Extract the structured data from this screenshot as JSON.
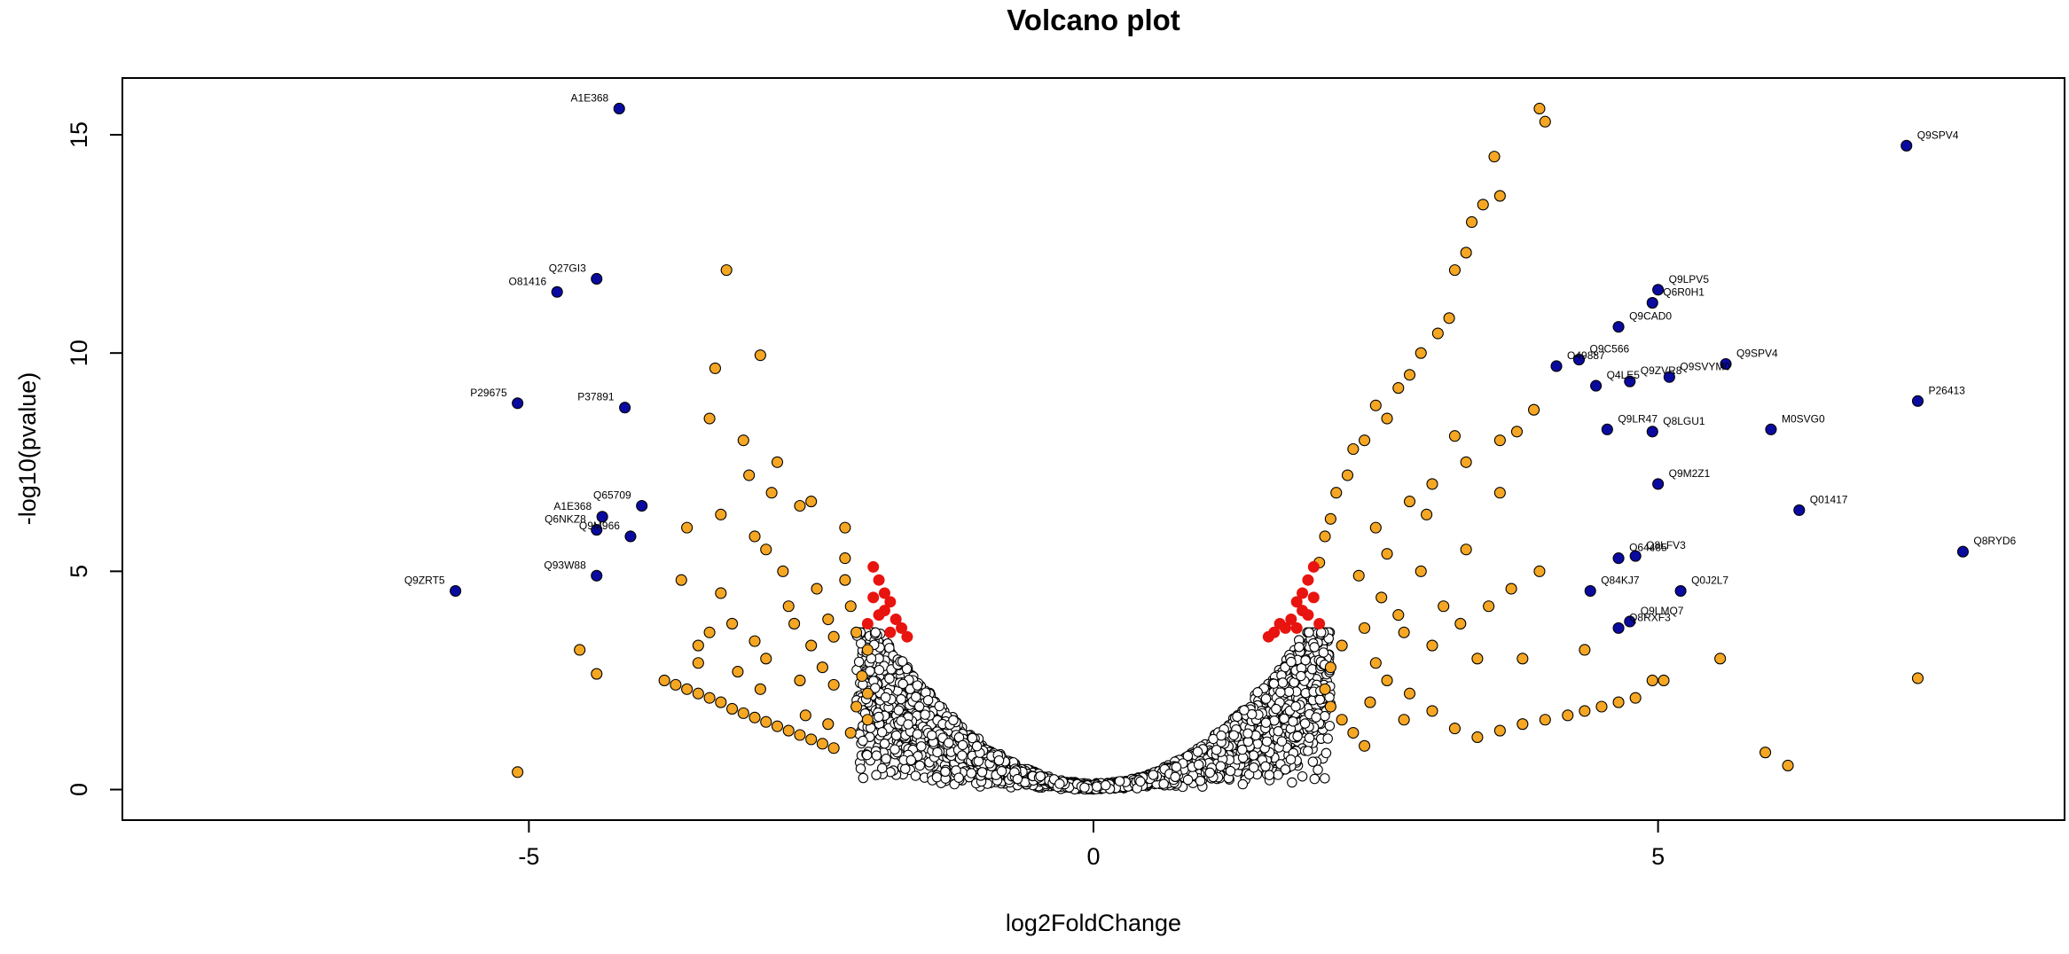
{
  "chart_data": {
    "type": "scatter",
    "title": "Volcano plot",
    "xlabel": "log2FoldChange",
    "ylabel": "-log10(pvalue)",
    "xlim": [
      -8.6,
      8.6
    ],
    "ylim": [
      -0.7,
      16.3
    ],
    "x_ticks": [
      -5,
      0,
      5
    ],
    "y_ticks": [
      0,
      5,
      10,
      15
    ],
    "x_tick_labels": [
      "-5",
      "0",
      "5"
    ],
    "y_tick_labels": [
      "0",
      "5",
      "10",
      "15"
    ],
    "grid": false,
    "legend": "none",
    "colors": {
      "not_significant": "#ffffff",
      "fold_change_significant": "#f5a623",
      "pvalue_significant": "#e8140f",
      "labeled_proteins": "#0a0aa0",
      "outline": "#000000"
    },
    "series": [
      {
        "group": "labeled",
        "points": [
          {
            "label": "A1E368",
            "x": -4.2,
            "y": 15.6
          },
          {
            "label": "Q27GI3",
            "x": -4.4,
            "y": 11.7
          },
          {
            "label": "O81416",
            "x": -4.75,
            "y": 11.4
          },
          {
            "label": "P29675",
            "x": -5.1,
            "y": 8.85
          },
          {
            "label": "P37891",
            "x": -4.15,
            "y": 8.75
          },
          {
            "label": "Q65709",
            "x": -4.0,
            "y": 6.5
          },
          {
            "label": "A1E368",
            "x": -4.35,
            "y": 6.25
          },
          {
            "label": "Q6NKZ8",
            "x": -4.4,
            "y": 5.95
          },
          {
            "label": "Q9M966",
            "x": -4.1,
            "y": 5.8
          },
          {
            "label": "Q93W88",
            "x": -4.4,
            "y": 4.9
          },
          {
            "label": "Q9ZRT5",
            "x": -5.65,
            "y": 4.55
          },
          {
            "label": "Q9SPV4",
            "x": 7.2,
            "y": 14.75
          },
          {
            "label": "Q9LPV5",
            "x": 5.0,
            "y": 11.45
          },
          {
            "label": "Q6R0H1",
            "x": 4.95,
            "y": 11.15
          },
          {
            "label": "Q9CAD0",
            "x": 4.65,
            "y": 10.6
          },
          {
            "label": "Q9C566",
            "x": 4.3,
            "y": 9.85
          },
          {
            "label": "O49887",
            "x": 4.1,
            "y": 9.7
          },
          {
            "label": "Q9SPV4",
            "x": 5.6,
            "y": 9.75
          },
          {
            "label": "Q9SVYM0",
            "x": 5.1,
            "y": 9.45
          },
          {
            "label": "Q9ZVR8",
            "x": 4.75,
            "y": 9.35
          },
          {
            "label": "Q4LE5",
            "x": 4.45,
            "y": 9.25
          },
          {
            "label": "P26413",
            "x": 7.3,
            "y": 8.9
          },
          {
            "label": "Q9LR47",
            "x": 4.55,
            "y": 8.25
          },
          {
            "label": "Q8LGU1",
            "x": 4.95,
            "y": 8.2
          },
          {
            "label": "M0SVG0",
            "x": 6.0,
            "y": 8.25
          },
          {
            "label": "Q9M2Z1",
            "x": 5.0,
            "y": 7.0
          },
          {
            "label": "Q01417",
            "x": 6.25,
            "y": 6.4
          },
          {
            "label": "Q8RYD6",
            "x": 7.7,
            "y": 5.45
          },
          {
            "label": "O64485",
            "x": 4.65,
            "y": 5.3
          },
          {
            "label": "Q8LFV3",
            "x": 4.8,
            "y": 5.35
          },
          {
            "label": "Q84KJ7",
            "x": 4.4,
            "y": 4.55
          },
          {
            "label": "Q0J2L7",
            "x": 5.2,
            "y": 4.55
          },
          {
            "label": "Q9LMQ7",
            "x": 4.75,
            "y": 3.85
          },
          {
            "label": "Q8RXF3",
            "x": 4.65,
            "y": 3.7
          }
        ]
      },
      {
        "group": "fold_change_significant",
        "points": [
          [
            -5.1,
            0.4
          ],
          [
            -4.55,
            3.2
          ],
          [
            -4.4,
            2.65
          ],
          [
            -3.35,
            9.65
          ],
          [
            -3.25,
            11.9
          ],
          [
            -2.95,
            9.95
          ],
          [
            -3.4,
            8.5
          ],
          [
            -3.1,
            8.0
          ],
          [
            -2.8,
            7.5
          ],
          [
            -2.6,
            6.5
          ],
          [
            -2.5,
            6.6
          ],
          [
            -2.2,
            6.0
          ],
          [
            -3.6,
            6.0
          ],
          [
            -3.3,
            4.5
          ],
          [
            -3.65,
            4.8
          ],
          [
            -3.5,
            3.3
          ],
          [
            -2.9,
            3.0
          ],
          [
            -2.6,
            2.5
          ],
          [
            -3.8,
            2.5
          ],
          [
            -3.7,
            2.4
          ],
          [
            -3.6,
            2.3
          ],
          [
            -3.5,
            2.2
          ],
          [
            -3.4,
            2.1
          ],
          [
            -3.3,
            2.0
          ],
          [
            -3.2,
            1.85
          ],
          [
            -3.1,
            1.75
          ],
          [
            -3.0,
            1.65
          ],
          [
            -2.9,
            1.55
          ],
          [
            -2.8,
            1.45
          ],
          [
            -2.7,
            1.35
          ],
          [
            -2.6,
            1.25
          ],
          [
            -2.5,
            1.15
          ],
          [
            -2.4,
            1.05
          ],
          [
            -2.3,
            0.95
          ],
          [
            -2.9,
            5.5
          ],
          [
            -2.75,
            5.0
          ],
          [
            -2.7,
            4.2
          ],
          [
            -2.45,
            4.6
          ],
          [
            -2.35,
            3.9
          ],
          [
            -2.3,
            3.5
          ],
          [
            -2.2,
            4.8
          ],
          [
            -2.15,
            4.2
          ],
          [
            -2.1,
            3.6
          ],
          [
            -2.0,
            3.2
          ],
          [
            -2.05,
            2.6
          ],
          [
            -2.0,
            2.2
          ],
          [
            -2.1,
            1.9
          ],
          [
            -2.0,
            1.6
          ],
          [
            -2.4,
            2.8
          ],
          [
            -2.5,
            3.3
          ],
          [
            -2.65,
            3.8
          ],
          [
            -2.2,
            5.3
          ],
          [
            -2.3,
            2.4
          ],
          [
            -3.0,
            5.8
          ],
          [
            -3.3,
            6.3
          ],
          [
            -3.05,
            7.2
          ],
          [
            -2.85,
            6.8
          ],
          [
            -3.4,
            3.6
          ],
          [
            -3.2,
            3.8
          ],
          [
            -3.0,
            3.4
          ],
          [
            -2.55,
            1.7
          ],
          [
            -2.35,
            1.5
          ],
          [
            -2.15,
            1.3
          ],
          [
            -3.5,
            2.9
          ],
          [
            -3.15,
            2.7
          ],
          [
            -2.95,
            2.3
          ],
          [
            4.0,
            15.3
          ],
          [
            3.95,
            15.6
          ],
          [
            3.55,
            14.5
          ],
          [
            3.6,
            13.6
          ],
          [
            3.45,
            13.4
          ],
          [
            3.35,
            13.0
          ],
          [
            3.3,
            12.3
          ],
          [
            3.2,
            11.9
          ],
          [
            3.15,
            10.8
          ],
          [
            3.05,
            10.45
          ],
          [
            2.9,
            10.0
          ],
          [
            2.8,
            9.5
          ],
          [
            2.7,
            9.2
          ],
          [
            2.6,
            8.5
          ],
          [
            2.5,
            8.8
          ],
          [
            2.4,
            8.0
          ],
          [
            2.3,
            7.8
          ],
          [
            2.25,
            7.2
          ],
          [
            2.15,
            6.8
          ],
          [
            2.1,
            6.2
          ],
          [
            2.05,
            5.8
          ],
          [
            2.0,
            5.2
          ],
          [
            2.5,
            6.0
          ],
          [
            2.8,
            6.6
          ],
          [
            3.0,
            7.0
          ],
          [
            3.3,
            7.5
          ],
          [
            3.6,
            8.0
          ],
          [
            3.9,
            8.7
          ],
          [
            3.75,
            8.2
          ],
          [
            3.2,
            8.1
          ],
          [
            2.6,
            5.4
          ],
          [
            2.9,
            5.0
          ],
          [
            3.3,
            5.5
          ],
          [
            3.5,
            4.2
          ],
          [
            3.7,
            4.6
          ],
          [
            3.95,
            5.0
          ],
          [
            3.1,
            4.2
          ],
          [
            2.7,
            4.0
          ],
          [
            2.4,
            3.7
          ],
          [
            2.2,
            3.3
          ],
          [
            2.1,
            2.8
          ],
          [
            2.05,
            2.3
          ],
          [
            2.1,
            1.9
          ],
          [
            2.2,
            1.6
          ],
          [
            2.3,
            1.3
          ],
          [
            2.4,
            1.0
          ],
          [
            2.6,
            2.5
          ],
          [
            2.8,
            2.2
          ],
          [
            3.0,
            1.8
          ],
          [
            3.2,
            1.4
          ],
          [
            3.4,
            1.2
          ],
          [
            3.6,
            1.35
          ],
          [
            3.8,
            1.5
          ],
          [
            4.0,
            1.6
          ],
          [
            4.2,
            1.7
          ],
          [
            4.35,
            1.8
          ],
          [
            4.5,
            1.9
          ],
          [
            4.65,
            2.0
          ],
          [
            4.8,
            2.1
          ],
          [
            4.95,
            2.5
          ],
          [
            5.05,
            2.5
          ],
          [
            5.55,
            3.0
          ],
          [
            5.95,
            0.85
          ],
          [
            6.15,
            0.55
          ],
          [
            7.3,
            2.55
          ],
          [
            4.35,
            3.2
          ],
          [
            3.0,
            3.3
          ],
          [
            3.4,
            3.0
          ],
          [
            2.5,
            2.9
          ],
          [
            3.8,
            3.0
          ],
          [
            3.6,
            6.8
          ],
          [
            2.95,
            6.3
          ],
          [
            2.35,
            4.9
          ],
          [
            2.55,
            4.4
          ],
          [
            2.75,
            3.6
          ],
          [
            3.25,
            3.8
          ],
          [
            2.45,
            2.0
          ],
          [
            2.75,
            1.6
          ]
        ]
      },
      {
        "group": "pvalue_significant",
        "points": [
          [
            -1.95,
            5.1
          ],
          [
            -1.9,
            4.8
          ],
          [
            -1.85,
            4.5
          ],
          [
            -1.8,
            4.3
          ],
          [
            -1.85,
            4.1
          ],
          [
            -1.75,
            3.9
          ],
          [
            -1.7,
            3.7
          ],
          [
            -1.8,
            3.6
          ],
          [
            -1.9,
            4.0
          ],
          [
            -1.95,
            4.4
          ],
          [
            -1.65,
            3.5
          ],
          [
            -2.0,
            3.8
          ],
          [
            1.95,
            5.1
          ],
          [
            1.9,
            4.8
          ],
          [
            1.85,
            4.5
          ],
          [
            1.8,
            4.3
          ],
          [
            1.85,
            4.1
          ],
          [
            1.75,
            3.9
          ],
          [
            1.7,
            3.7
          ],
          [
            1.6,
            3.6
          ],
          [
            1.9,
            4.0
          ],
          [
            1.95,
            4.4
          ],
          [
            1.55,
            3.5
          ],
          [
            2.0,
            3.8
          ],
          [
            1.65,
            3.8
          ],
          [
            1.8,
            3.7
          ]
        ]
      },
      {
        "group": "not_significant",
        "generated": true,
        "count": 2600,
        "x_range": [
          -2.1,
          2.1
        ]
      }
    ]
  }
}
